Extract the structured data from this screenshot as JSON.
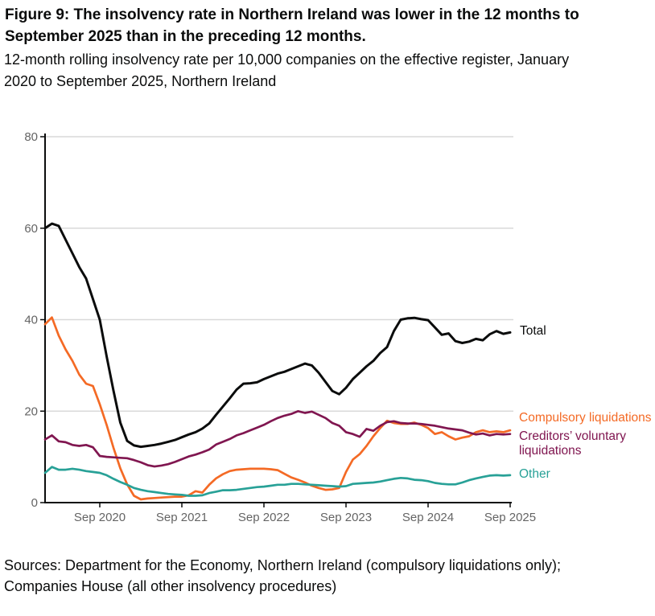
{
  "header": {
    "title": "Figure 9: The insolvency rate in Northern Ireland was lower in the 12 months to September 2025 than in the preceding 12 months.",
    "subtitle": "12-month rolling insolvency rate per 10,000 companies on the effective register, January 2020 to September 2025, Northern Ireland"
  },
  "footer": {
    "sources": "Sources: Department for the Economy, Northern Ireland (compulsory liquidations only); Companies House (all other insolvency procedures)"
  },
  "chart_data": {
    "type": "line",
    "title": "12-month rolling insolvency rate per 10,000 companies, Northern Ireland",
    "xlabel": "",
    "ylabel": "",
    "x_unit": "month",
    "x_start": "2020-01",
    "x_end": "2025-09",
    "x_tick_labels": [
      "Sep 2020",
      "Sep 2021",
      "Sep 2022",
      "Sep 2023",
      "Sep 2024",
      "Sep 2025"
    ],
    "x_tick_month_indices": [
      8,
      20,
      32,
      44,
      56,
      68
    ],
    "y_ticks": [
      0,
      20,
      40,
      60,
      80
    ],
    "ylim": [
      0,
      80
    ],
    "grid": "horizontal",
    "legend_position": "right-of-line-ends",
    "colors": {
      "grid": "#d9d9d9",
      "axis": "#0b0c0c",
      "tick_text": "#646464"
    },
    "series": [
      {
        "id": "total",
        "name": "Total",
        "color": "#0b0c0c",
        "width": 3,
        "values": [
          60,
          61,
          60.5,
          57.5,
          54.5,
          51.5,
          49,
          44.5,
          40,
          32,
          24.5,
          17.5,
          13.5,
          12.5,
          12.2,
          12.4,
          12.6,
          12.9,
          13.3,
          13.7,
          14.3,
          14.9,
          15.4,
          16.2,
          17.3,
          19.2,
          21,
          22.8,
          24.7,
          26,
          26.1,
          26.3,
          27,
          27.6,
          28.2,
          28.6,
          29.2,
          29.8,
          30.4,
          30,
          28.4,
          26.4,
          24.4,
          23.7,
          25.1,
          27,
          28.4,
          29.8,
          31,
          32.7,
          34,
          37.5,
          40,
          40.3,
          40.4,
          40.1,
          39.9,
          38.3,
          36.7,
          37,
          35.3,
          34.9,
          35.2,
          35.8,
          35.5,
          36.8,
          37.5,
          36.9,
          37.2
        ]
      },
      {
        "id": "compulsory-liquidations",
        "name": "Compulsory liquidations",
        "color": "#f46a25",
        "width": 2.7,
        "values": [
          39,
          40.5,
          36.5,
          33.5,
          31,
          28,
          26,
          25.5,
          21.5,
          17,
          12,
          7.5,
          4,
          1.5,
          0.7,
          0.9,
          1.0,
          1.1,
          1.2,
          1.3,
          1.3,
          1.6,
          2.5,
          2.2,
          3.9,
          5.3,
          6.2,
          6.9,
          7.2,
          7.3,
          7.4,
          7.4,
          7.4,
          7.3,
          7.1,
          6.3,
          5.5,
          5.0,
          4.4,
          3.7,
          3.2,
          2.8,
          2.9,
          3.2,
          6.7,
          9.4,
          10.6,
          12.4,
          14.5,
          16.3,
          17.9,
          17.4,
          17.2,
          17.2,
          17.5,
          17.0,
          16.3,
          15.0,
          15.4,
          14.5,
          13.8,
          14.2,
          14.5,
          15.4,
          15.8,
          15.4,
          15.6,
          15.4,
          15.8
        ]
      },
      {
        "id": "creditors-voluntary-liquidations",
        "name": "Creditors’ voluntary liquidations",
        "color": "#801650",
        "width": 2.7,
        "values": [
          13.8,
          14.7,
          13.4,
          13.2,
          12.6,
          12.4,
          12.6,
          12.1,
          10.2,
          10,
          9.9,
          9.8,
          9.7,
          9.3,
          8.8,
          8.2,
          7.9,
          8.1,
          8.4,
          8.9,
          9.5,
          10.1,
          10.5,
          11.0,
          11.6,
          12.7,
          13.3,
          13.9,
          14.7,
          15.2,
          15.8,
          16.4,
          17.0,
          17.8,
          18.5,
          19.0,
          19.4,
          20.0,
          19.6,
          19.9,
          19.2,
          18.5,
          17.4,
          16.8,
          15.4,
          15.0,
          14.4,
          16.1,
          15.7,
          16.8,
          17.6,
          17.8,
          17.4,
          17.3,
          17.3,
          17.2,
          17.0,
          16.8,
          16.5,
          16.2,
          16.0,
          15.8,
          15.3,
          14.9,
          15.1,
          14.7,
          15.0,
          14.9,
          15.0
        ]
      },
      {
        "id": "other",
        "name": "Other",
        "color": "#28a197",
        "width": 2.7,
        "values": [
          6.5,
          7.8,
          7.2,
          7.2,
          7.4,
          7.2,
          6.9,
          6.7,
          6.5,
          6.0,
          5.2,
          4.5,
          3.9,
          3.2,
          2.8,
          2.5,
          2.3,
          2.1,
          1.9,
          1.8,
          1.7,
          1.5,
          1.5,
          1.6,
          2.1,
          2.4,
          2.7,
          2.7,
          2.8,
          3.0,
          3.2,
          3.4,
          3.5,
          3.7,
          3.9,
          3.9,
          4.1,
          4.1,
          4.0,
          3.9,
          3.8,
          3.7,
          3.6,
          3.5,
          3.6,
          4.1,
          4.2,
          4.3,
          4.4,
          4.6,
          4.9,
          5.2,
          5.4,
          5.3,
          5.0,
          4.9,
          4.7,
          4.3,
          4.1,
          4.0,
          4.0,
          4.4,
          4.9,
          5.3,
          5.6,
          5.9,
          6.0,
          5.9,
          6.0
        ]
      }
    ]
  }
}
